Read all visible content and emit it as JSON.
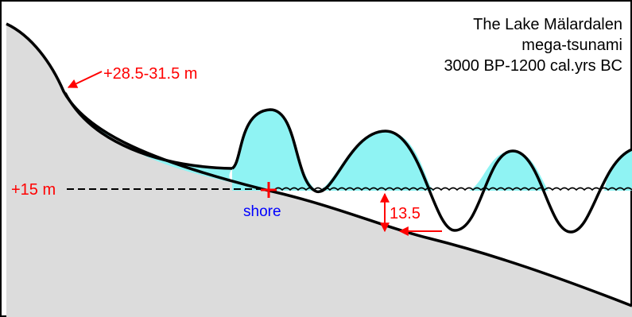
{
  "title_lines": [
    "The Lake Mälardalen",
    "mega-tsunami",
    "3000 BP-1200 cal.yrs BC"
  ],
  "labels": {
    "runup": "+28.5-31.5 m",
    "sea_level": "+15 m",
    "shore": "shore",
    "depth": "13.5"
  },
  "colors": {
    "ground": "#dcdcdc",
    "water": "#8ff3f3",
    "outline": "#000000",
    "annotation": "#ff0000",
    "shore_label": "#0000ff"
  }
}
